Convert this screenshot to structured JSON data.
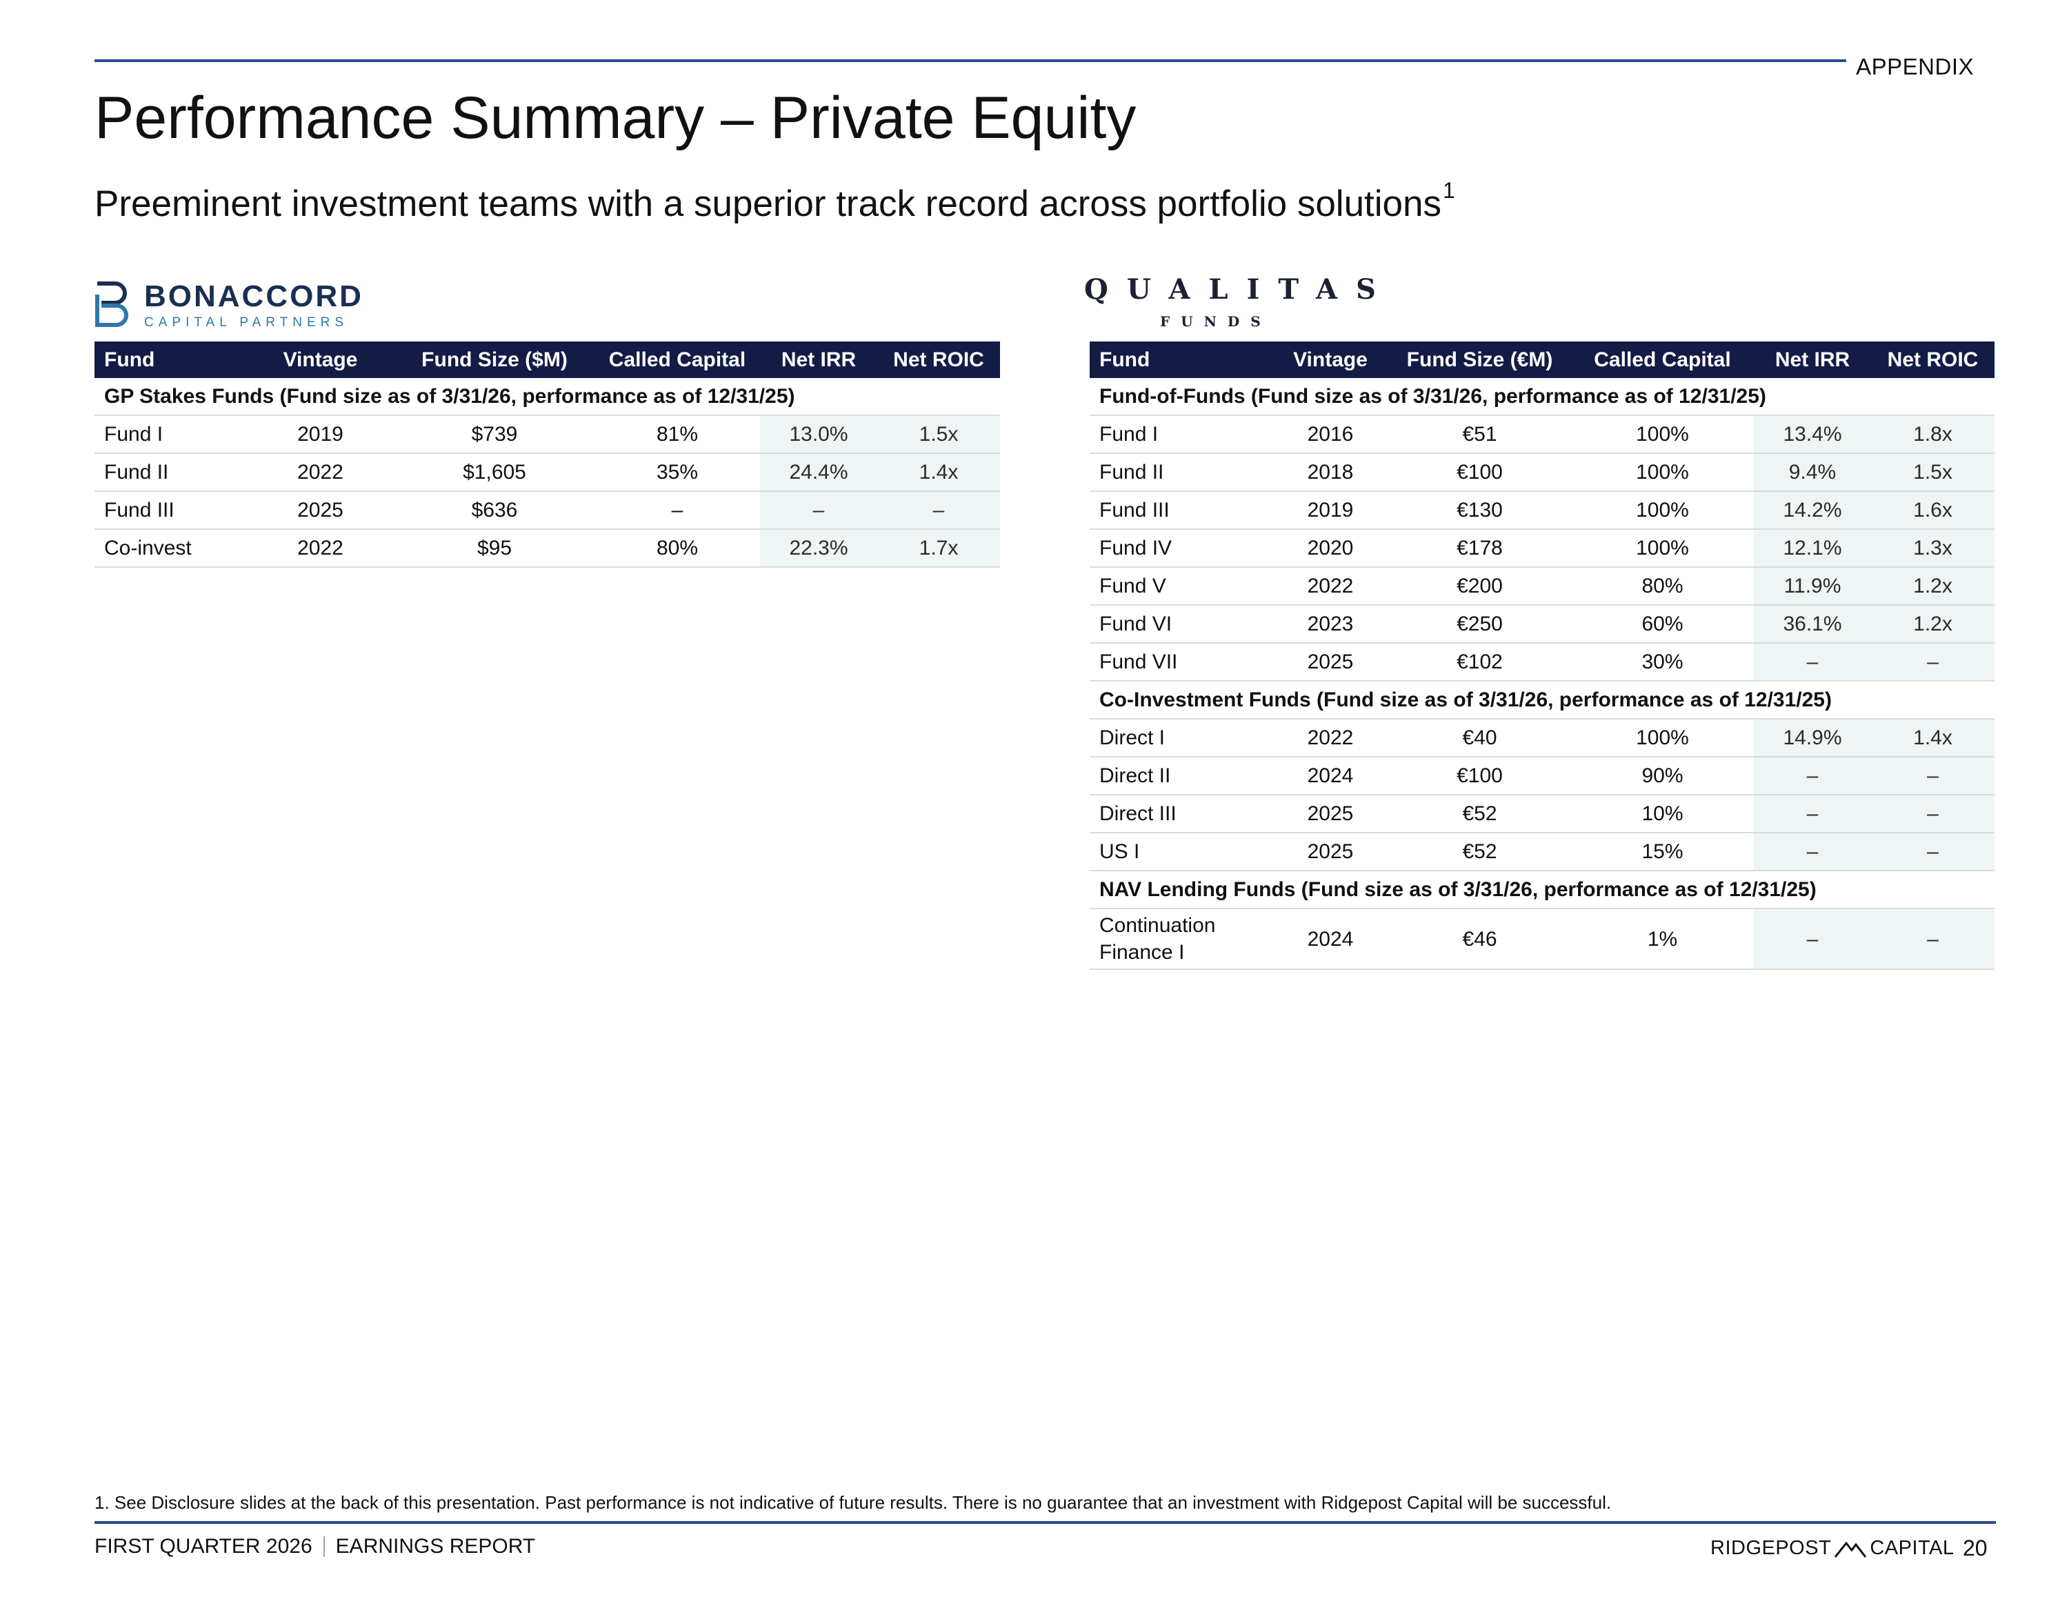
{
  "header": {
    "section_label": "APPENDIX",
    "title": "Performance Summary – Private Equity",
    "subtitle": "Preeminent investment teams with a superior track record across portfolio solutions",
    "subtitle_footnote": "1"
  },
  "logos": {
    "left": {
      "name": "BONACCORD",
      "tagline": "CAPITAL PARTNERS",
      "color": "#1b2e53",
      "accent": "#2e78a8"
    },
    "right": {
      "name": "QUALITAS",
      "tagline": "FUNDS",
      "color": "#1b2235"
    }
  },
  "left_table": {
    "headers": [
      "Fund",
      "Vintage",
      "Fund Size ($M)",
      "Called Capital",
      "Net IRR",
      "Net ROIC"
    ],
    "sections": [
      {
        "title": "GP Stakes Funds (Fund size as of 3/31/26, performance as of 12/31/25)",
        "rows": [
          [
            "Fund I",
            "2019",
            "$739",
            "81%",
            "13.0%",
            "1.5x"
          ],
          [
            "Fund II",
            "2022",
            "$1,605",
            "35%",
            "24.4%",
            "1.4x"
          ],
          [
            "Fund III",
            "2025",
            "$636",
            "–",
            "–",
            "–"
          ],
          [
            "Co-invest",
            "2022",
            "$95",
            "80%",
            "22.3%",
            "1.7x"
          ]
        ]
      }
    ]
  },
  "right_table": {
    "headers": [
      "Fund",
      "Vintage",
      "Fund Size (€M)",
      "Called Capital",
      "Net IRR",
      "Net ROIC"
    ],
    "sections": [
      {
        "title": "Fund-of-Funds (Fund size as of 3/31/26, performance as of 12/31/25)",
        "rows": [
          [
            "Fund I",
            "2016",
            "€51",
            "100%",
            "13.4%",
            "1.8x"
          ],
          [
            "Fund II",
            "2018",
            "€100",
            "100%",
            "9.4%",
            "1.5x"
          ],
          [
            "Fund III",
            "2019",
            "€130",
            "100%",
            "14.2%",
            "1.6x"
          ],
          [
            "Fund IV",
            "2020",
            "€178",
            "100%",
            "12.1%",
            "1.3x"
          ],
          [
            "Fund V",
            "2022",
            "€200",
            "80%",
            "11.9%",
            "1.2x"
          ],
          [
            "Fund VI",
            "2023",
            "€250",
            "60%",
            "36.1%",
            "1.2x"
          ],
          [
            "Fund VII",
            "2025",
            "€102",
            "30%",
            "–",
            "–"
          ]
        ]
      },
      {
        "title": "Co-Investment Funds (Fund size as of 3/31/26, performance as of 12/31/25)",
        "rows": [
          [
            "Direct I",
            "2022",
            "€40",
            "100%",
            "14.9%",
            "1.4x"
          ],
          [
            "Direct II",
            "2024",
            "€100",
            "90%",
            "–",
            "–"
          ],
          [
            "Direct III",
            "2025",
            "€52",
            "10%",
            "–",
            "–"
          ],
          [
            "US I",
            "2025",
            "€52",
            "15%",
            "–",
            "–"
          ]
        ]
      },
      {
        "title": "NAV Lending Funds (Fund size as of 3/31/26, performance as of 12/31/25)",
        "rows": [
          [
            "Continuation Finance I",
            "2024",
            "€46",
            "1%",
            "–",
            "–"
          ]
        ]
      }
    ]
  },
  "footer": {
    "footnote": "1.  See Disclosure slides at the back of this presentation. Past performance is not indicative of future results. There is no guarantee that an investment with Ridgepost Capital will be successful.",
    "left_a": "FIRST QUARTER 2026",
    "left_b": "EARNINGS REPORT",
    "brand_a": "RIDGEPOST",
    "brand_b": "CAPITAL",
    "page_number": "20"
  }
}
